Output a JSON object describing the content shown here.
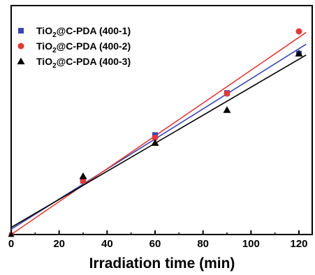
{
  "chart_data": {
    "type": "scatter",
    "title": "",
    "xlabel": "Irradiation time (min)",
    "ylabel": "",
    "xlim": [
      0,
      126
    ],
    "ylim": [
      0,
      1
    ],
    "x_ticks": [
      0,
      20,
      40,
      60,
      80,
      100,
      120
    ],
    "x_tick_labels": [
      "0",
      "20",
      "40",
      "60",
      "80",
      "100",
      "120"
    ],
    "y_ticks_labeled": false,
    "grid": false,
    "legend_position": "top-left",
    "series": [
      {
        "name_prefix": "TiO",
        "name_sub": "2",
        "name_suffix": "@C-PDA (400-1)",
        "marker": "square",
        "color": "#3a46b0",
        "x": [
          30,
          60,
          90,
          120
        ],
        "y": [
          0.264,
          0.49,
          0.697,
          0.891
        ],
        "fit_line": {
          "x0": 0,
          "y0": 0.026,
          "x1": 123,
          "y1": 0.937
        }
      },
      {
        "name_prefix": "TiO",
        "name_sub": "2",
        "name_suffix": "@C-PDA (400-2)",
        "marker": "circle",
        "color": "#e23a3a",
        "x": [
          30,
          60,
          90,
          120
        ],
        "y": [
          0.264,
          0.477,
          0.694,
          1.0
        ],
        "fit_line": {
          "x0": 0,
          "y0": 0.0,
          "x1": 123,
          "y1": 0.995
        }
      },
      {
        "name_prefix": "TiO",
        "name_sub": "2",
        "name_suffix": "@C-PDA (400-3)",
        "marker": "triangle",
        "color": "#000000",
        "x": [
          30,
          60,
          90,
          120
        ],
        "y": [
          0.287,
          0.451,
          0.613,
          0.891
        ],
        "fit_line": {
          "x0": 0,
          "y0": 0.035,
          "x1": 123,
          "y1": 0.884
        }
      }
    ]
  }
}
